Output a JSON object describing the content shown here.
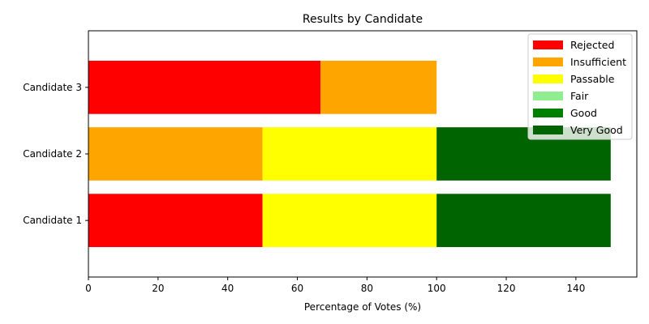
{
  "chart_data": {
    "type": "bar",
    "orientation": "horizontal",
    "stacked": true,
    "title": "Results by Candidate",
    "xlabel": "Percentage of Votes (%)",
    "ylabel": "",
    "xlim": [
      0,
      157.5
    ],
    "xticks": [
      0,
      20,
      40,
      60,
      80,
      100,
      120,
      140
    ],
    "categories": [
      "Candidate 1",
      "Candidate 2",
      "Candidate 3"
    ],
    "series": [
      {
        "name": "Rejected",
        "color": "#ff0000",
        "values": [
          50,
          0,
          66.67
        ]
      },
      {
        "name": "Insufficient",
        "color": "#ffa500",
        "values": [
          0,
          50,
          33.33
        ]
      },
      {
        "name": "Passable",
        "color": "#ffff00",
        "values": [
          50,
          50,
          0
        ]
      },
      {
        "name": "Fair",
        "color": "#90ee90",
        "values": [
          0,
          0,
          0
        ]
      },
      {
        "name": "Good",
        "color": "#008000",
        "values": [
          0,
          0,
          0
        ]
      },
      {
        "name": "Very Good",
        "color": "#006400",
        "values": [
          50,
          50,
          0
        ]
      }
    ],
    "legend_position": "upper right",
    "grid": false
  }
}
